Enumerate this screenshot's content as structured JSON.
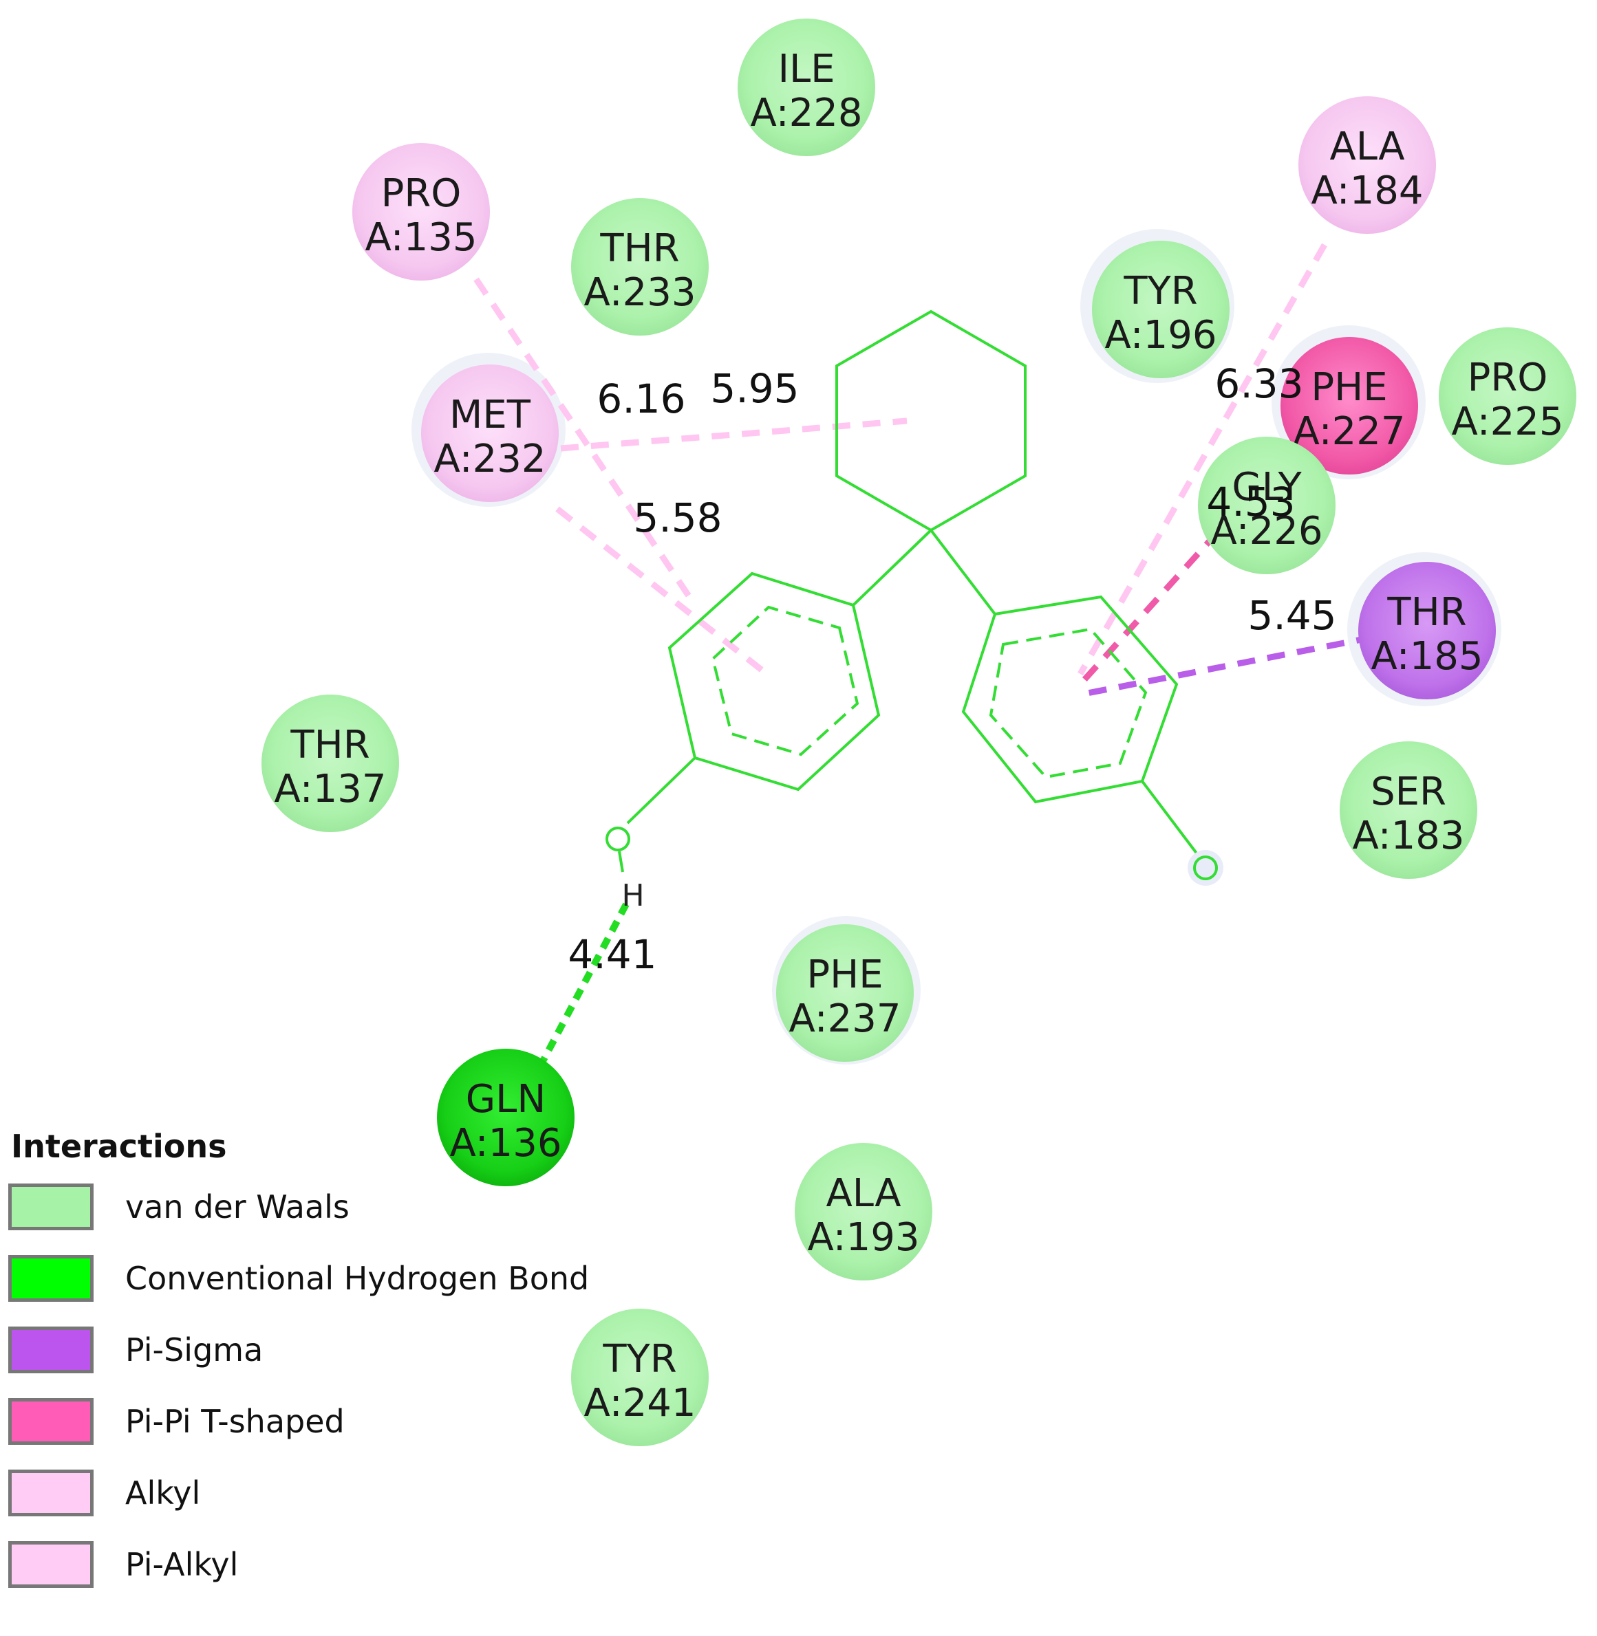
{
  "legend": {
    "title": "Interactions",
    "items": [
      {
        "key": "vdw",
        "label": "van der Waals",
        "color": "#a6f2a6"
      },
      {
        "key": "hbond",
        "label": "Conventional Hydrogen Bond",
        "color": "#00ff00"
      },
      {
        "key": "pisigma",
        "label": "Pi-Sigma",
        "color": "#bb55ee"
      },
      {
        "key": "pipi",
        "label": "Pi-Pi T-shaped",
        "color": "#ff5cb8"
      },
      {
        "key": "alkyl",
        "label": "Alkyl",
        "color": "#ffccf5"
      },
      {
        "key": "pialkyl",
        "label": "Pi-Alkyl",
        "color": "#ffccf5"
      }
    ]
  },
  "ligand": {
    "color": "#33dd33",
    "atoms": {
      "hydrogen_label": "H"
    }
  },
  "residues": [
    {
      "name": "ILE",
      "id": "A:228",
      "type": "vdw"
    },
    {
      "name": "PRO",
      "id": "A:135",
      "type": "alkyl"
    },
    {
      "name": "THR",
      "id": "A:233",
      "type": "vdw"
    },
    {
      "name": "ALA",
      "id": "A:184",
      "type": "alkyl"
    },
    {
      "name": "TYR",
      "id": "A:196",
      "type": "vdw"
    },
    {
      "name": "MET",
      "id": "A:232",
      "type": "alkyl"
    },
    {
      "name": "PHE",
      "id": "A:227",
      "type": "pipi"
    },
    {
      "name": "PRO",
      "id": "A:225",
      "type": "vdw"
    },
    {
      "name": "GLY",
      "id": "A:226",
      "type": "vdw"
    },
    {
      "name": "THR",
      "id": "A:185",
      "type": "pisigma"
    },
    {
      "name": "THR",
      "id": "A:137",
      "type": "vdw"
    },
    {
      "name": "SER",
      "id": "A:183",
      "type": "vdw"
    },
    {
      "name": "PHE",
      "id": "A:237",
      "type": "vdw"
    },
    {
      "name": "GLN",
      "id": "A:136",
      "type": "hbond"
    },
    {
      "name": "ALA",
      "id": "A:193",
      "type": "vdw"
    },
    {
      "name": "TYR",
      "id": "A:241",
      "type": "vdw"
    }
  ],
  "interactions": [
    {
      "from": "PRO A:135",
      "to": "ring-left",
      "type": "alkyl",
      "distance": ""
    },
    {
      "from": "MET A:232",
      "to": "cyclohexane",
      "type": "alkyl",
      "distance": "5.95"
    },
    {
      "from": "MET A:232",
      "to": "ring-left",
      "type": "pialkyl",
      "distance": "5.58"
    },
    {
      "from": "PRO A:135",
      "to": "ring-left",
      "type": "pialkyl",
      "distance": "6.16"
    },
    {
      "from": "ALA A:184",
      "to": "ring-right",
      "type": "pialkyl",
      "distance": "6.33"
    },
    {
      "from": "PHE A:227",
      "to": "ring-right",
      "type": "pipi",
      "distance": "4.53"
    },
    {
      "from": "THR A:185",
      "to": "ring-right",
      "type": "pisigma",
      "distance": "5.45"
    },
    {
      "from": "GLN A:136",
      "to": "hydroxyl-H",
      "type": "hbond",
      "distance": "4.41"
    }
  ]
}
